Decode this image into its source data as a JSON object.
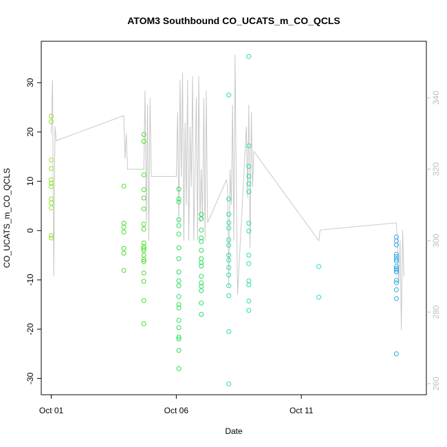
{
  "chart_data": {
    "type": "scatter",
    "title": "ATOM3 Southbound CO_UCATS_m_CO_QCLS",
    "xlabel": "Date",
    "ylabel": "CO_UCATS_m_CO_QCLS",
    "x_ticks": [
      "Oct 01",
      "Oct 06",
      "Oct 11"
    ],
    "x_tick_days": [
      1,
      6,
      11
    ],
    "xlim": [
      0.6,
      16.0
    ],
    "ylim": [
      -33.3,
      38.4
    ],
    "y_ticks": [
      -30,
      -20,
      -10,
      0,
      10,
      20,
      30
    ],
    "y2lim": [
      256.9,
      355.8
    ],
    "y2_ticks": [
      260,
      280,
      300,
      320,
      340
    ],
    "grid": false,
    "colors": {
      "line": "#c8c8c8",
      "axis": "#000000",
      "right_axis": "#bdbdbd"
    },
    "series": [
      {
        "color": "#8fe028",
        "points": [
          [
            1.0,
            23.2
          ],
          [
            1.0,
            22.1
          ],
          [
            1.0,
            14.3
          ],
          [
            1.0,
            12.6
          ],
          [
            1.0,
            10.3
          ],
          [
            1.0,
            9.6
          ],
          [
            1.0,
            8.9
          ],
          [
            1.0,
            6.4
          ],
          [
            1.0,
            5.6
          ],
          [
            1.0,
            4.6
          ],
          [
            1.0,
            -1.0
          ],
          [
            1.0,
            -1.5
          ]
        ]
      },
      {
        "color": "#44e024",
        "points": [
          [
            3.9,
            9.0
          ],
          [
            3.9,
            1.5
          ],
          [
            3.9,
            0.7
          ],
          [
            3.9,
            -0.3
          ],
          [
            3.9,
            -3.6
          ],
          [
            3.9,
            -4.6
          ],
          [
            3.9,
            -8.1
          ],
          [
            4.7,
            19.5
          ],
          [
            4.7,
            18.1
          ],
          [
            4.7,
            11.3
          ],
          [
            4.7,
            8.3
          ],
          [
            4.7,
            6.6
          ],
          [
            4.7,
            4.4
          ],
          [
            4.7,
            1.3
          ],
          [
            4.7,
            0.3
          ],
          [
            4.7,
            -2.5
          ],
          [
            4.7,
            -3.2
          ],
          [
            4.7,
            -3.6
          ],
          [
            4.7,
            -4.0
          ],
          [
            4.7,
            -5.0
          ],
          [
            4.7,
            -5.9
          ],
          [
            4.7,
            -6.3
          ],
          [
            4.7,
            -8.6
          ],
          [
            4.7,
            -10.3
          ],
          [
            4.7,
            -14.2
          ],
          [
            4.7,
            -18.9
          ]
        ]
      },
      {
        "color": "#22e05a",
        "points": [
          [
            6.1,
            8.4
          ],
          [
            6.1,
            6.4
          ],
          [
            6.1,
            5.8
          ],
          [
            6.1,
            2.2
          ],
          [
            6.1,
            1.0
          ],
          [
            6.1,
            -0.7
          ],
          [
            6.1,
            -3.5
          ],
          [
            6.1,
            -5.7
          ],
          [
            6.1,
            -8.4
          ],
          [
            6.1,
            -10.2
          ],
          [
            6.1,
            -11.2
          ],
          [
            6.1,
            -13.4
          ],
          [
            6.1,
            -15.0
          ],
          [
            6.1,
            -15.7
          ],
          [
            6.1,
            -18.2
          ],
          [
            6.1,
            -19.7
          ],
          [
            6.1,
            -21.6
          ],
          [
            6.1,
            -22.0
          ],
          [
            6.1,
            -24.3
          ],
          [
            6.1,
            -28.0
          ],
          [
            7.0,
            3.3
          ],
          [
            7.0,
            2.4
          ],
          [
            7.0,
            0.1
          ],
          [
            7.0,
            -1.5
          ],
          [
            7.0,
            -2.2
          ],
          [
            7.0,
            -4.0
          ],
          [
            7.0,
            -5.7
          ],
          [
            7.0,
            -6.5
          ],
          [
            7.0,
            -7.2
          ],
          [
            7.0,
            -9.3
          ],
          [
            7.0,
            -10.6
          ],
          [
            7.0,
            -11.3
          ],
          [
            7.0,
            -12.2
          ],
          [
            7.0,
            -14.7
          ],
          [
            7.0,
            -17.0
          ]
        ]
      },
      {
        "color": "#20e0a0",
        "points": [
          [
            8.1,
            27.5
          ],
          [
            8.1,
            6.4
          ],
          [
            8.1,
            3.3
          ],
          [
            8.1,
            1.6
          ],
          [
            8.1,
            0.5
          ],
          [
            8.1,
            -1.9
          ],
          [
            8.1,
            -3.0
          ],
          [
            8.1,
            -5.0
          ],
          [
            8.1,
            -6.0
          ],
          [
            8.1,
            -7.5
          ],
          [
            8.1,
            -9.0
          ],
          [
            8.1,
            -11.2
          ],
          [
            8.1,
            -13.2
          ],
          [
            8.1,
            -20.5
          ],
          [
            8.1,
            -31.1
          ],
          [
            8.9,
            35.3
          ],
          [
            8.9,
            17.2
          ],
          [
            8.9,
            13.0
          ],
          [
            8.9,
            11.0
          ],
          [
            8.9,
            9.5
          ],
          [
            8.9,
            7.9
          ],
          [
            8.9,
            1.5
          ],
          [
            8.9,
            -0.1
          ],
          [
            8.9,
            -5.0
          ],
          [
            8.9,
            -6.7
          ],
          [
            8.9,
            -10.2
          ],
          [
            8.9,
            -11.0
          ],
          [
            8.9,
            -14.3
          ],
          [
            8.9,
            -16.2
          ]
        ]
      },
      {
        "color": "#20e0e0",
        "points": [
          [
            11.7,
            -7.3
          ],
          [
            11.7,
            -13.5
          ]
        ]
      },
      {
        "color": "#2aa8e6",
        "points": [
          [
            14.8,
            -1.3
          ],
          [
            14.8,
            -2.1
          ],
          [
            14.8,
            -2.9
          ],
          [
            14.8,
            -4.8
          ],
          [
            14.8,
            -5.3
          ],
          [
            14.8,
            -5.8
          ],
          [
            14.8,
            -6.2
          ],
          [
            14.8,
            -7.3
          ],
          [
            14.8,
            -7.7
          ],
          [
            14.8,
            -8.0
          ],
          [
            14.8,
            -8.4
          ],
          [
            14.8,
            -10.1
          ],
          [
            14.8,
            -10.6
          ],
          [
            14.8,
            -12.0
          ],
          [
            14.8,
            -13.8
          ],
          [
            14.8,
            -25.0
          ]
        ]
      }
    ],
    "line_series": {
      "axis": "right",
      "x": [
        1.0,
        1.05,
        1.1,
        1.15,
        1.2,
        3.9,
        3.95,
        4.0,
        4.05,
        4.7,
        4.75,
        4.8,
        4.85,
        4.9,
        4.95,
        5.0,
        6.0,
        6.05,
        6.1,
        6.15,
        6.2,
        6.25,
        6.3,
        6.35,
        6.4,
        6.45,
        6.5,
        6.55,
        6.6,
        6.65,
        6.7,
        6.8,
        6.85,
        6.9,
        6.95,
        7.0,
        7.05,
        7.1,
        7.15,
        7.2,
        7.25,
        8.0,
        8.05,
        8.1,
        8.15,
        8.2,
        8.25,
        8.3,
        8.35,
        8.4,
        8.45,
        8.8,
        8.85,
        8.9,
        8.95,
        9.0,
        9.05,
        9.1,
        11.7,
        11.75,
        14.8,
        14.85,
        14.9,
        14.95,
        15.0,
        15.05,
        15.1
      ],
      "y": [
        330,
        345,
        290,
        332,
        328,
        335,
        323,
        330,
        320,
        320,
        342,
        305,
        338,
        300,
        340,
        318,
        318,
        336,
        305,
        345,
        318,
        347,
        300,
        333,
        310,
        345,
        300,
        332,
        315,
        346,
        300,
        340,
        300,
        346,
        305,
        320,
        306,
        340,
        300,
        342,
        305,
        317,
        315,
        287,
        320,
        310,
        338,
        300,
        352,
        315,
        285,
        332,
        312,
        338,
        298,
        336,
        315,
        325,
        300,
        303,
        305,
        298,
        288,
        300,
        275,
        303,
        290
      ]
    }
  }
}
